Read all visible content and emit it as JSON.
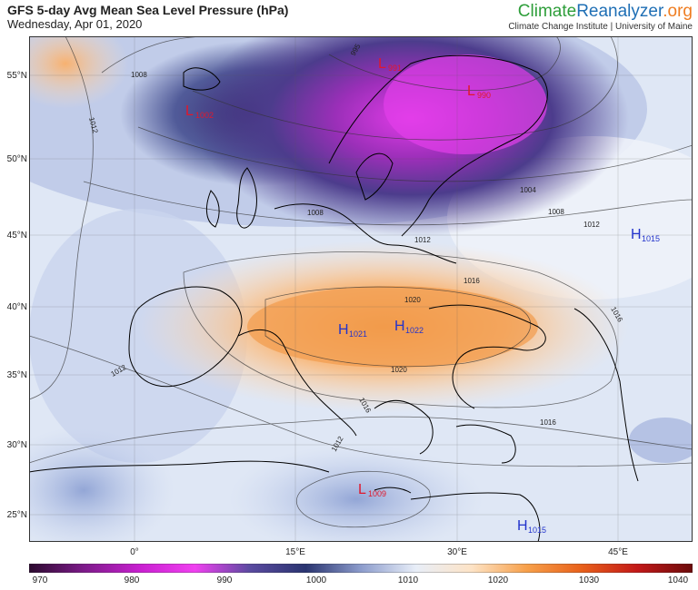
{
  "header": {
    "title": "GFS 5-day Avg Mean Sea Level Pressure (hPa)",
    "date": "Wednesday, Apr 01, 2020",
    "brand": {
      "part1": "Climate",
      "part2": "Reanalyzer",
      "part3": ".org"
    },
    "institution": "Climate Change Institute | University of Maine"
  },
  "map": {
    "lat_labels": [
      "55°N",
      "50°N",
      "45°N",
      "40°N",
      "35°N",
      "30°N",
      "25°N"
    ],
    "lon_labels": [
      "0°",
      "15°E",
      "30°E",
      "45°E"
    ],
    "pressure_centers": [
      {
        "type": "L",
        "value": "1002",
        "color": "#e0182d"
      },
      {
        "type": "L",
        "value": "991",
        "color": "#e0182d"
      },
      {
        "type": "L",
        "value": "990",
        "color": "#e0182d"
      },
      {
        "type": "H",
        "value": "1015",
        "color": "#2233cc"
      },
      {
        "type": "H",
        "value": "1021",
        "color": "#2233cc"
      },
      {
        "type": "H",
        "value": "1022",
        "color": "#2233cc"
      },
      {
        "type": "L",
        "value": "1009",
        "color": "#e0182d"
      },
      {
        "type": "H",
        "value": "1015",
        "color": "#2233cc"
      }
    ],
    "isobar_labels": [
      "1008",
      "1012",
      "995",
      "1004",
      "1008",
      "1008",
      "1012",
      "1016",
      "1020",
      "1020",
      "1016",
      "1012",
      "1016",
      "1012",
      "1016",
      "1012"
    ]
  },
  "colorbar": {
    "labels": [
      "970",
      "980",
      "990",
      "1000",
      "1010",
      "1020",
      "1030",
      "1040"
    ],
    "stops": [
      "#2b0a2e",
      "#7d1a8a",
      "#c81fd0",
      "#f040f0",
      "#5a4aa0",
      "#2a3470",
      "#8c9ccc",
      "#e8eef8",
      "#fde3c6",
      "#f7a04a",
      "#e8601a",
      "#c21818",
      "#6b0b0b"
    ]
  }
}
